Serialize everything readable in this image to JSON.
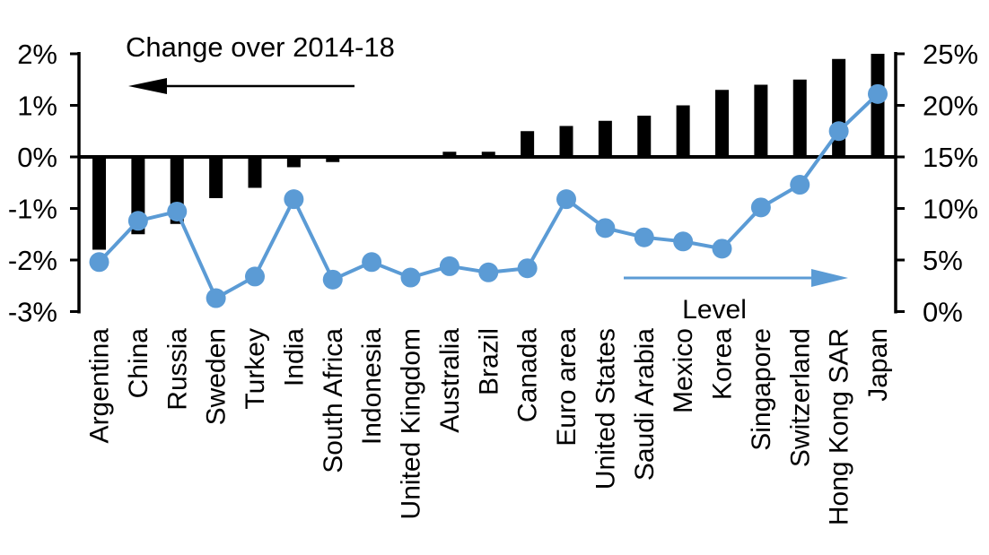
{
  "chart_data": {
    "type": "bar",
    "title": "",
    "categories": [
      "Argentina",
      "China",
      "Russia",
      "Sweden",
      "Turkey",
      "India",
      "South Africa",
      "Indonesia",
      "United Kingdom",
      "Australia",
      "Brazil",
      "Canada",
      "Euro area",
      "United States",
      "Saudi Arabia",
      "Mexico",
      "Korea",
      "Singapore",
      "Switzerland",
      "Hong Kong SAR",
      "Japan"
    ],
    "series": [
      {
        "name": "Change over 2014-18",
        "type": "bar",
        "axis": "left",
        "color": "#000000",
        "values": [
          -1.8,
          -1.5,
          -1.3,
          -0.8,
          -0.6,
          -0.2,
          -0.1,
          0,
          0,
          0.1,
          0.1,
          0.5,
          0.6,
          0.7,
          0.8,
          1.0,
          1.3,
          1.4,
          1.5,
          1.9,
          2.0
        ]
      },
      {
        "name": "Level",
        "type": "line",
        "axis": "right",
        "color": "#5B9BD5",
        "values": [
          4.8,
          8.8,
          9.7,
          1.3,
          3.4,
          10.9,
          3.1,
          4.8,
          3.3,
          4.4,
          3.8,
          4.2,
          10.9,
          8.1,
          7.2,
          6.8,
          6.1,
          10.1,
          12.3,
          17.5,
          21.1
        ]
      }
    ],
    "left_axis": {
      "ticks": [
        "2%",
        "1%",
        "0%",
        "-1%",
        "-2%",
        "-3%"
      ],
      "min": -3,
      "max": 2,
      "unit": "%"
    },
    "right_axis": {
      "ticks": [
        "25%",
        "20%",
        "15%",
        "10%",
        "5%",
        "0%"
      ],
      "min": 0,
      "max": 25,
      "unit": "%"
    },
    "annotations": [
      {
        "text": "Change over 2014-18",
        "arrow": "left",
        "color": "#000000"
      },
      {
        "text": "Level",
        "arrow": "right",
        "color": "#5B9BD5"
      }
    ],
    "grid": false,
    "legend": "none",
    "background": "#ffffff"
  }
}
